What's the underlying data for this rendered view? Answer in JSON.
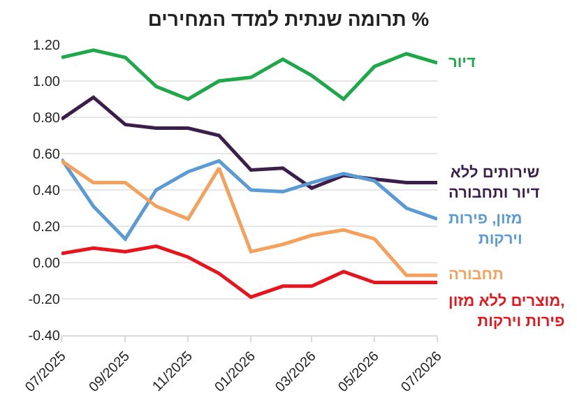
{
  "chart_data": {
    "type": "line",
    "title": "תרומה שנתית למדד המחירים %",
    "x": [
      "2025-07",
      "2025-08",
      "2025-09",
      "2025-10",
      "2025-11",
      "2025-12",
      "2026-01",
      "2026-02",
      "2026-03",
      "2026-04",
      "2026-05",
      "2026-06",
      "2026-07"
    ],
    "xlim": [
      "2025-07",
      "2026-07"
    ],
    "xticks": [
      {
        "value": "2025-07",
        "label": "07/2025"
      },
      {
        "value": "2025-09",
        "label": "09/2025"
      },
      {
        "value": "2025-11",
        "label": "11/2025"
      },
      {
        "value": "2026-01",
        "label": "01/2026"
      },
      {
        "value": "2026-03",
        "label": "03/2026"
      },
      {
        "value": "2026-05",
        "label": "05/2026"
      },
      {
        "value": "2026-07",
        "label": "07/2026"
      }
    ],
    "ylim": [
      -0.4,
      1.2
    ],
    "yticks": [
      {
        "value": -0.4,
        "label": "-0.40"
      },
      {
        "value": -0.2,
        "label": "-0.20"
      },
      {
        "value": 0,
        "label": "0.00"
      },
      {
        "value": 0.2,
        "label": "0.20"
      },
      {
        "value": 0.4,
        "label": "0.40"
      },
      {
        "value": 0.6,
        "label": "0.60"
      },
      {
        "value": 0.8,
        "label": "0.80"
      },
      {
        "value": 1,
        "label": "1.00"
      },
      {
        "value": 1.2,
        "label": "1.20"
      }
    ],
    "grid": "y",
    "legend": false,
    "marker": "none",
    "line_style": "solid",
    "series": [
      {
        "name": "דיור",
        "color": "#1ea84a",
        "values": [
          1.13,
          1.17,
          1.13,
          0.97,
          0.9,
          1.0,
          1.02,
          1.12,
          1.03,
          0.9,
          1.08,
          1.15,
          1.1
        ]
      },
      {
        "name": "שירותים ללא דיור ותחבורה",
        "color": "#3b1f4a",
        "values": [
          0.79,
          0.91,
          0.76,
          0.74,
          0.74,
          0.7,
          0.51,
          0.52,
          0.41,
          0.48,
          0.46,
          0.44,
          0.44
        ]
      },
      {
        "name": "מזון, פירות וירקות",
        "color": "#5b9bd5",
        "values": [
          0.57,
          0.31,
          0.13,
          0.4,
          0.5,
          0.56,
          0.4,
          0.39,
          0.44,
          0.49,
          0.45,
          0.3,
          0.24
        ]
      },
      {
        "name": "תחבורה",
        "color": "#f4a15d",
        "values": [
          0.56,
          0.44,
          0.44,
          0.31,
          0.24,
          0.52,
          0.06,
          0.1,
          0.15,
          0.18,
          0.13,
          -0.07,
          -0.07
        ]
      },
      {
        "name": "מוצרים ללא מזון, פירות וירקות",
        "color": "#e8141b",
        "values": [
          0.05,
          0.08,
          0.06,
          0.09,
          0.03,
          -0.06,
          -0.19,
          -0.13,
          -0.13,
          -0.05,
          -0.11,
          -0.11,
          -0.11
        ]
      }
    ]
  }
}
